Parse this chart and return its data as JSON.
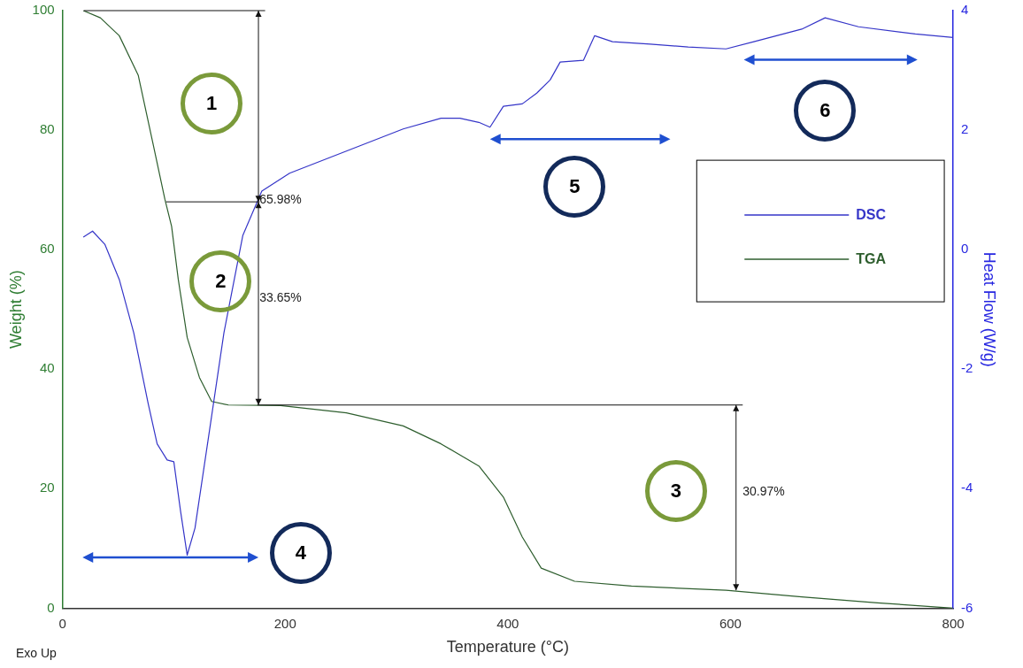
{
  "chart_data": {
    "type": "line",
    "xlabel": "Temperature (°C)",
    "ylabel": "Weight (%)",
    "y2label": "Heat Flow (W/g)",
    "xlim": [
      0,
      800
    ],
    "xticks": [
      0,
      200,
      400,
      600,
      800
    ],
    "ylim": [
      0,
      100
    ],
    "yticks": [
      0,
      20,
      40,
      60,
      80,
      100
    ],
    "y2lim": [
      -6,
      4
    ],
    "y2ticks": [
      -6,
      -4,
      -2,
      0,
      2,
      4
    ],
    "grid": false,
    "legend": "right",
    "marker": "none",
    "line_style": "solid",
    "series": [
      {
        "name": "DSC",
        "color": "#3535c8",
        "axis": "y2",
        "x": [
          18.7,
          27,
          38,
          51,
          64,
          77,
          85,
          94,
          100,
          106,
          112,
          119,
          132,
          145,
          162,
          179,
          204,
          255,
          306,
          340,
          357,
          374,
          384,
          396,
          413,
          426,
          438,
          447,
          468,
          478,
          494,
          528,
          562,
          596,
          621,
          664,
          685,
          715,
          766,
          800
        ],
        "values": [
          0.21,
          0.31,
          0.09,
          -0.5,
          -1.39,
          -2.58,
          -3.25,
          -3.52,
          -3.55,
          -4.37,
          -5.11,
          -4.66,
          -3.03,
          -1.39,
          0.24,
          0.98,
          1.28,
          1.65,
          2.02,
          2.2,
          2.2,
          2.13,
          2.05,
          2.4,
          2.44,
          2.62,
          2.84,
          3.14,
          3.17,
          3.58,
          3.48,
          3.44,
          3.39,
          3.36,
          3.48,
          3.69,
          3.88,
          3.73,
          3.61,
          3.55
        ]
      },
      {
        "name": "TGA",
        "color": "#2e5e2e",
        "x": [
          18.7,
          34,
          51,
          68,
          81,
          92,
          98,
          104,
          112,
          123,
          134,
          149,
          196,
          255,
          306,
          340,
          374,
          396,
          413,
          430,
          460,
          511,
          596,
          664,
          732,
          800
        ],
        "values": [
          100,
          98.8,
          95.8,
          89.2,
          78,
          68.4,
          63.9,
          55,
          45.3,
          38.6,
          34.6,
          34,
          33.9,
          32.7,
          30.5,
          27.5,
          23.8,
          18.6,
          11.9,
          6.7,
          4.5,
          3.7,
          3,
          1.9,
          0.9,
          0
        ]
      }
    ],
    "annotations": [
      "1",
      "2",
      "3",
      "4",
      "5",
      "6",
      "65.98%",
      "33.65%",
      "30.97%",
      "Exo Up"
    ]
  }
}
